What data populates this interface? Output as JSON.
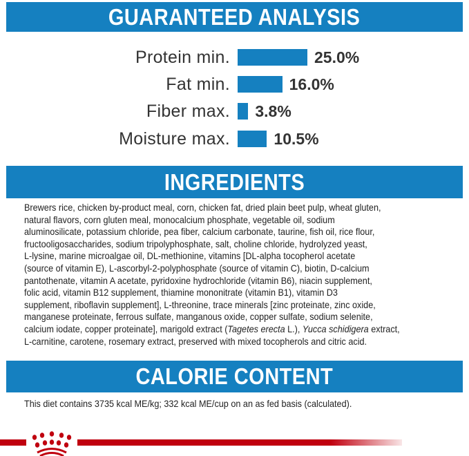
{
  "analysis": {
    "title": "GUARANTEED ANALYSIS",
    "items": [
      {
        "label": "Protein min.",
        "value": "25.0%",
        "percent": 25.0
      },
      {
        "label": "Fat min.",
        "value": "16.0%",
        "percent": 16.0
      },
      {
        "label": "Fiber max.",
        "value": "3.8%",
        "percent": 3.8
      },
      {
        "label": "Moisture max.",
        "value": "10.5%",
        "percent": 10.5
      }
    ]
  },
  "ingredients": {
    "title": "INGREDIENTS",
    "lines": [
      "Brewers rice, chicken by-product meal, corn, chicken fat, dried plain beet pulp, wheat gluten,",
      "natural flavors, corn gluten meal, monocalcium phosphate, vegetable oil, sodium",
      "aluminosilicate, potassium chloride, pea fiber, calcium carbonate, taurine, fish oil, rice flour,",
      "fructooligosaccharides, sodium tripolyphosphate, salt, choline chloride, hydrolyzed yeast,",
      "L-lysine, marine microalgae oil, DL-methionine, vitamins [DL-alpha tocopherol acetate",
      "(source of vitamin E), L-ascorbyl-2-polyphosphate (source of vitamin C), biotin, D-calcium",
      "pantothenate, vitamin A acetate, pyridoxine hydrochloride (vitamin B6), niacin supplement,",
      "folic acid, vitamin B12 supplement, thiamine mononitrate (vitamin B1), vitamin D3",
      "supplement, riboflavin supplement], L-threonine, trace minerals [zinc proteinate, zinc oxide,",
      "manganese proteinate, ferrous sulfate, manganous oxide, copper sulfate, sodium selenite,",
      "L-carnitine, carotene, rosemary extract, preserved with mixed tocopherols and citric acid."
    ],
    "line11": {
      "a": "calcium iodate, copper proteinate], marigold extract (",
      "b": "Tagetes erecta",
      "c": " L.), ",
      "d": "Yucca schidigera",
      "e": " extract,"
    }
  },
  "calorie": {
    "title": "CALORIE CONTENT",
    "text": "This diet contains 3735 kcal ME/kg; 332 kcal ME/cup on an as fed basis (calculated)."
  },
  "brand": {
    "logo": "royal-canin-crown-icon",
    "color": "#c0000f"
  },
  "colors": {
    "accent": "#1580c0",
    "brand_red": "#c0000f"
  }
}
